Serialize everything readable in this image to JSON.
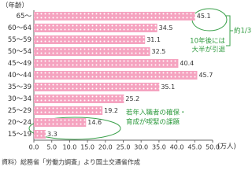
{
  "chart_data": {
    "type": "hbar",
    "y_label": "（年齢）",
    "x_unit": "(万人)",
    "categories": [
      "65～",
      "60～64",
      "55～59",
      "50～54",
      "45～49",
      "40～44",
      "35～39",
      "30～34",
      "25～29",
      "20～24",
      "15～19"
    ],
    "values": [
      45.1,
      34.5,
      31.1,
      32.5,
      40.4,
      45.7,
      35.1,
      25.2,
      19.2,
      14.6,
      3.3
    ],
    "color": "#f5a3c0",
    "xlim": [
      0,
      50
    ],
    "xticks": [
      {
        "value": 0,
        "label": "0.0"
      },
      {
        "value": 5,
        "label": "5.0"
      },
      {
        "value": 10,
        "label": "10.0"
      },
      {
        "value": 15,
        "label": "15.0"
      },
      {
        "value": 20,
        "label": "20.0"
      },
      {
        "value": 25,
        "label": "25.0"
      },
      {
        "value": 30,
        "label": "30.0"
      },
      {
        "value": 35,
        "label": "35.0"
      },
      {
        "value": 40,
        "label": "40.0"
      },
      {
        "value": 45,
        "label": "45.0"
      },
      {
        "value": 50,
        "label": "50.0"
      }
    ],
    "annotations": [
      "10年後には",
      "大半が引退",
      "約1/3",
      "若年入職者の確保・",
      "育成が喫緊の課題"
    ],
    "source": "資料）総務省「労働力調査」より国土交通省作成"
  }
}
